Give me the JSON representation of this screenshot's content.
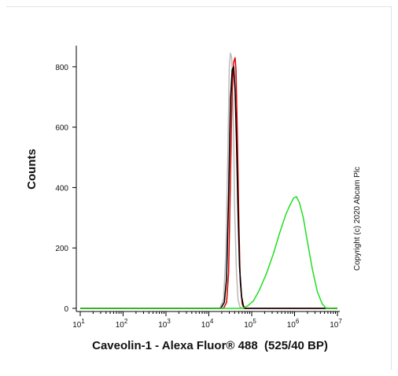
{
  "chart_data": {
    "type": "line",
    "title": "",
    "xlabel": "Caveolin-1 - Alexa Fluor® 488  (525/40 BP)",
    "ylabel": "Counts",
    "xscale": "log",
    "xlim": [
      10,
      10000000
    ],
    "ylim": [
      0,
      870
    ],
    "x_ticks": [
      {
        "base": "10",
        "exp": "1",
        "value": 10
      },
      {
        "base": "10",
        "exp": "2",
        "value": 100
      },
      {
        "base": "10",
        "exp": "3",
        "value": 1000
      },
      {
        "base": "10",
        "exp": "4",
        "value": 10000
      },
      {
        "base": "10",
        "exp": "5",
        "value": 100000
      },
      {
        "base": "10",
        "exp": "6",
        "value": 1000000
      },
      {
        "base": "10",
        "exp": "7",
        "value": 10000000
      }
    ],
    "y_ticks": [
      "0",
      "200",
      "400",
      "600",
      "800"
    ],
    "y_tick_values": [
      0,
      200,
      400,
      600,
      800
    ],
    "annotation": "Copyright (c) 2020 Abcam Plc",
    "grid": false,
    "series": [
      {
        "color": "#b9b9b9",
        "x": [
          10,
          18000,
          22000,
          25000,
          28000,
          30000,
          32000,
          34000,
          36000,
          38000,
          40000,
          44000,
          48000,
          53000,
          60000,
          10000000
        ],
        "y": [
          0,
          0,
          30,
          180,
          550,
          800,
          845,
          830,
          760,
          560,
          330,
          120,
          30,
          5,
          0,
          0
        ]
      },
      {
        "color": "#e00000",
        "x": [
          10,
          22000,
          26000,
          29000,
          32000,
          35000,
          38000,
          41000,
          43000,
          46000,
          50000,
          54000,
          60000,
          66000,
          10000000
        ],
        "y": [
          0,
          0,
          20,
          120,
          430,
          730,
          815,
          830,
          790,
          600,
          300,
          90,
          15,
          0,
          0
        ]
      },
      {
        "color": "#000000",
        "x": [
          10,
          19000,
          23000,
          26000,
          29000,
          32000,
          35000,
          38000,
          41000,
          44000,
          48000,
          52000,
          58000,
          64000,
          70000,
          10000000
        ],
        "y": [
          0,
          0,
          20,
          100,
          380,
          690,
          790,
          800,
          720,
          560,
          320,
          140,
          40,
          8,
          0,
          0
        ]
      },
      {
        "color": "#22dd22",
        "x": [
          10,
          60000,
          80000,
          110000,
          150000,
          220000,
          320000,
          450000,
          620000,
          800000,
          950000,
          1100000,
          1300000,
          1600000,
          2000000,
          2600000,
          3400000,
          4400000,
          5500000,
          10000000
        ],
        "y": [
          0,
          0,
          8,
          25,
          60,
          115,
          180,
          250,
          310,
          345,
          365,
          370,
          350,
          300,
          220,
          130,
          55,
          15,
          0,
          0
        ]
      }
    ]
  }
}
